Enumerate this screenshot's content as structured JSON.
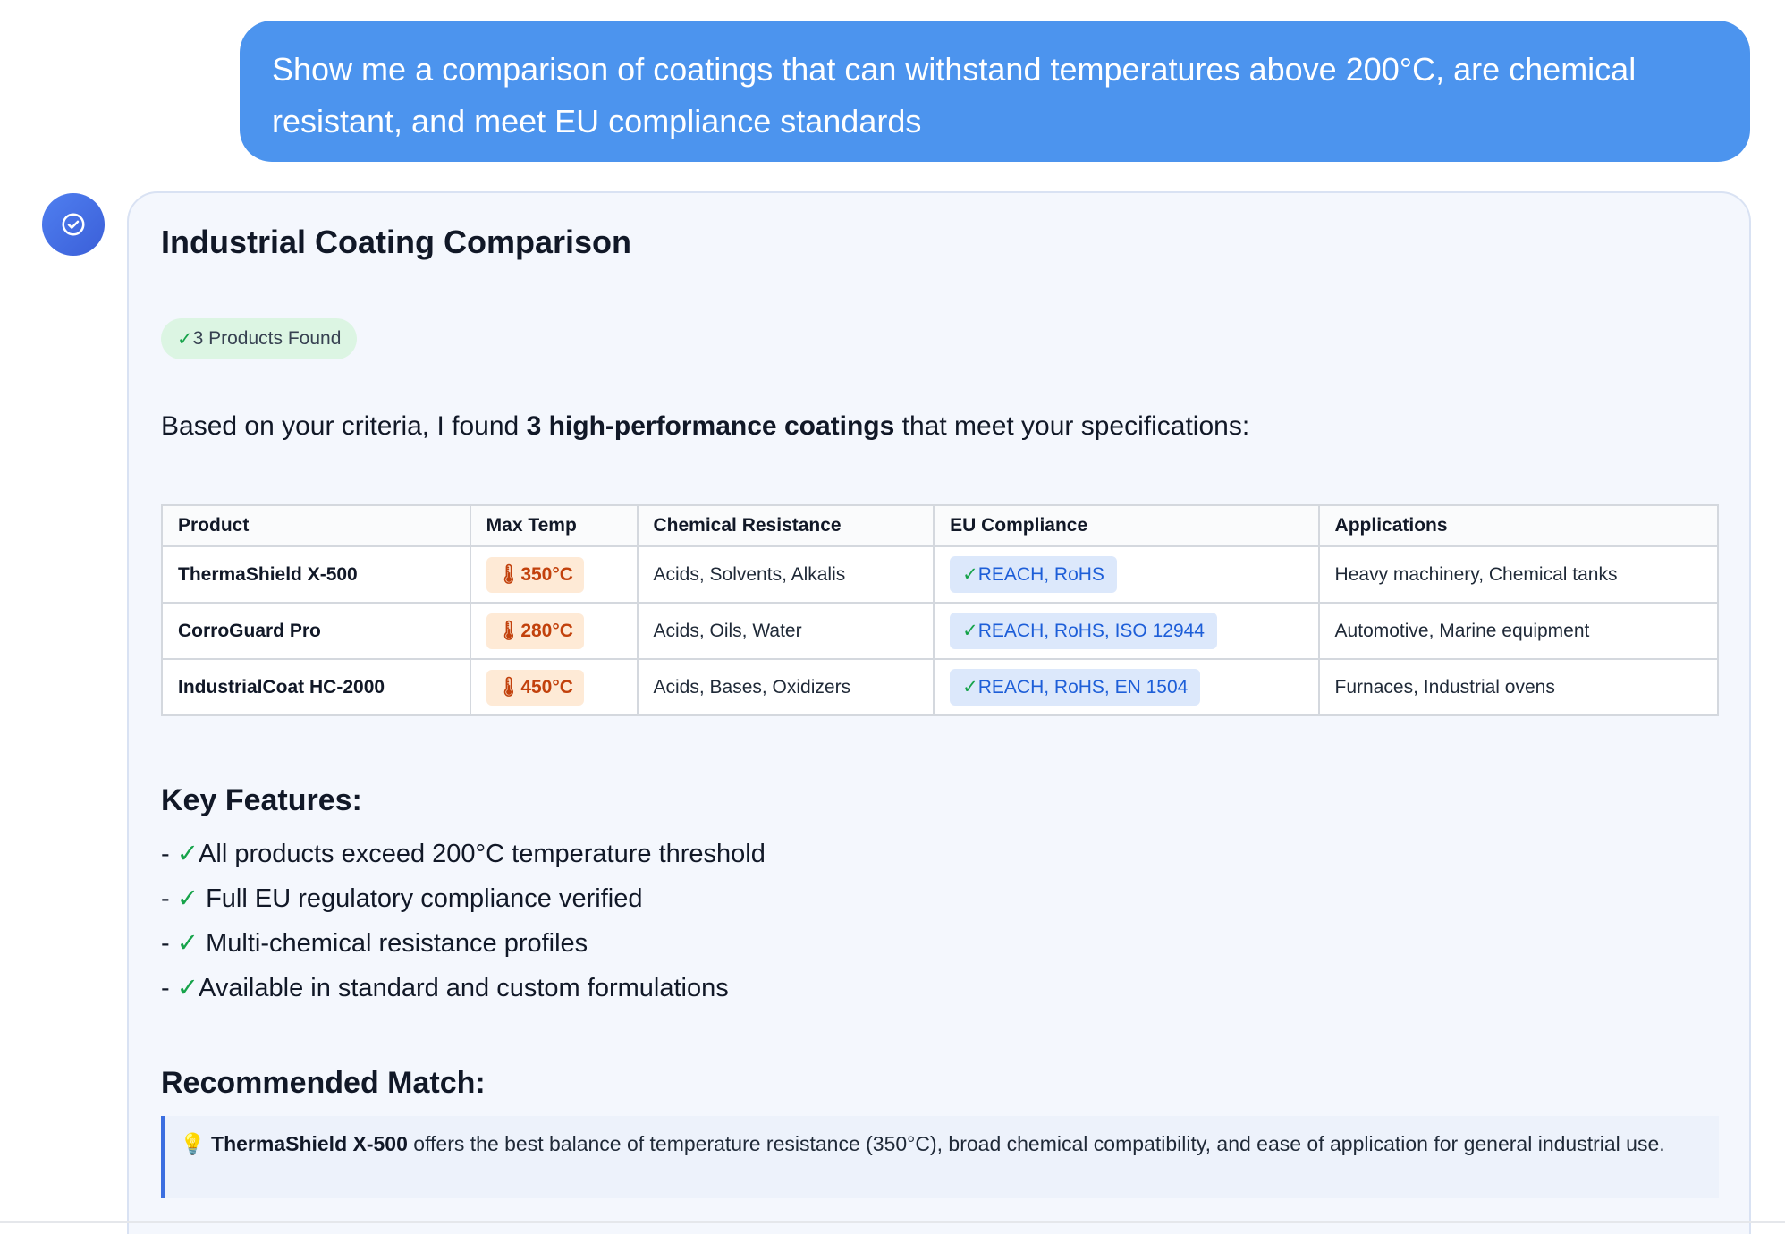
{
  "user_message": "Show me a comparison of coatings that can withstand temperatures above 200°C, are chemical resistant, and meet EU compliance standards",
  "assistant": {
    "title": "Industrial Coating Comparison",
    "badge": {
      "check": "✓",
      "label": "3 Products Found"
    },
    "intro": {
      "before": "Based on your criteria, I found ",
      "bold": "3 high-performance coatings",
      "after": " that meet your specifications:"
    },
    "table": {
      "headers": [
        "Product",
        "Max Temp",
        "Chemical Resistance",
        "EU Compliance",
        "Applications"
      ],
      "rows": [
        {
          "product": "ThermaShield X-500",
          "temp_icon": "🌡",
          "temp": "350°C",
          "chem": "Acids, Solvents, Alkalis",
          "check": "✓",
          "compliance": "REACH, RoHS",
          "apps": "Heavy machinery, Chemical tanks"
        },
        {
          "product": "CorroGuard Pro",
          "temp_icon": "🌡",
          "temp": "280°C",
          "chem": "Acids, Oils, Water",
          "check": "✓",
          "compliance": "REACH, RoHS, ISO 12944",
          "apps": "Automotive, Marine equipment"
        },
        {
          "product": "IndustrialCoat HC-2000",
          "temp_icon": "🌡",
          "temp": "450°C",
          "chem": "Acids, Bases, Oxidizers",
          "check": "✓",
          "compliance": "REACH, RoHS, EN 1504",
          "apps": "Furnaces, Industrial ovens"
        }
      ]
    },
    "features_heading": "Key Features:",
    "features": [
      {
        "dash": "- ",
        "check": "✓",
        "text": "All products exceed 200°C temperature threshold"
      },
      {
        "dash": "- ",
        "check": "✓",
        "text": " Full EU regulatory compliance verified"
      },
      {
        "dash": "- ",
        "check": "✓",
        "text": " Multi-chemical resistance profiles"
      },
      {
        "dash": "- ",
        "check": "✓",
        "text": "Available in standard and custom formulations"
      }
    ],
    "recommend_heading": "Recommended Match:",
    "recommend": {
      "icon": "💡",
      "bold": "ThermaShield X-500",
      "text": " offers the best balance of temperature resistance (350°C), broad chemical compatibility, and ease of application for general industrial use."
    }
  },
  "colors": {
    "user_bubble": "#4c94ee",
    "accent_blue": "#3b6ee0",
    "success_green": "#16a34a",
    "temp_orange": "#c2410c"
  },
  "icons": {
    "avatar": "check-circle-icon"
  }
}
